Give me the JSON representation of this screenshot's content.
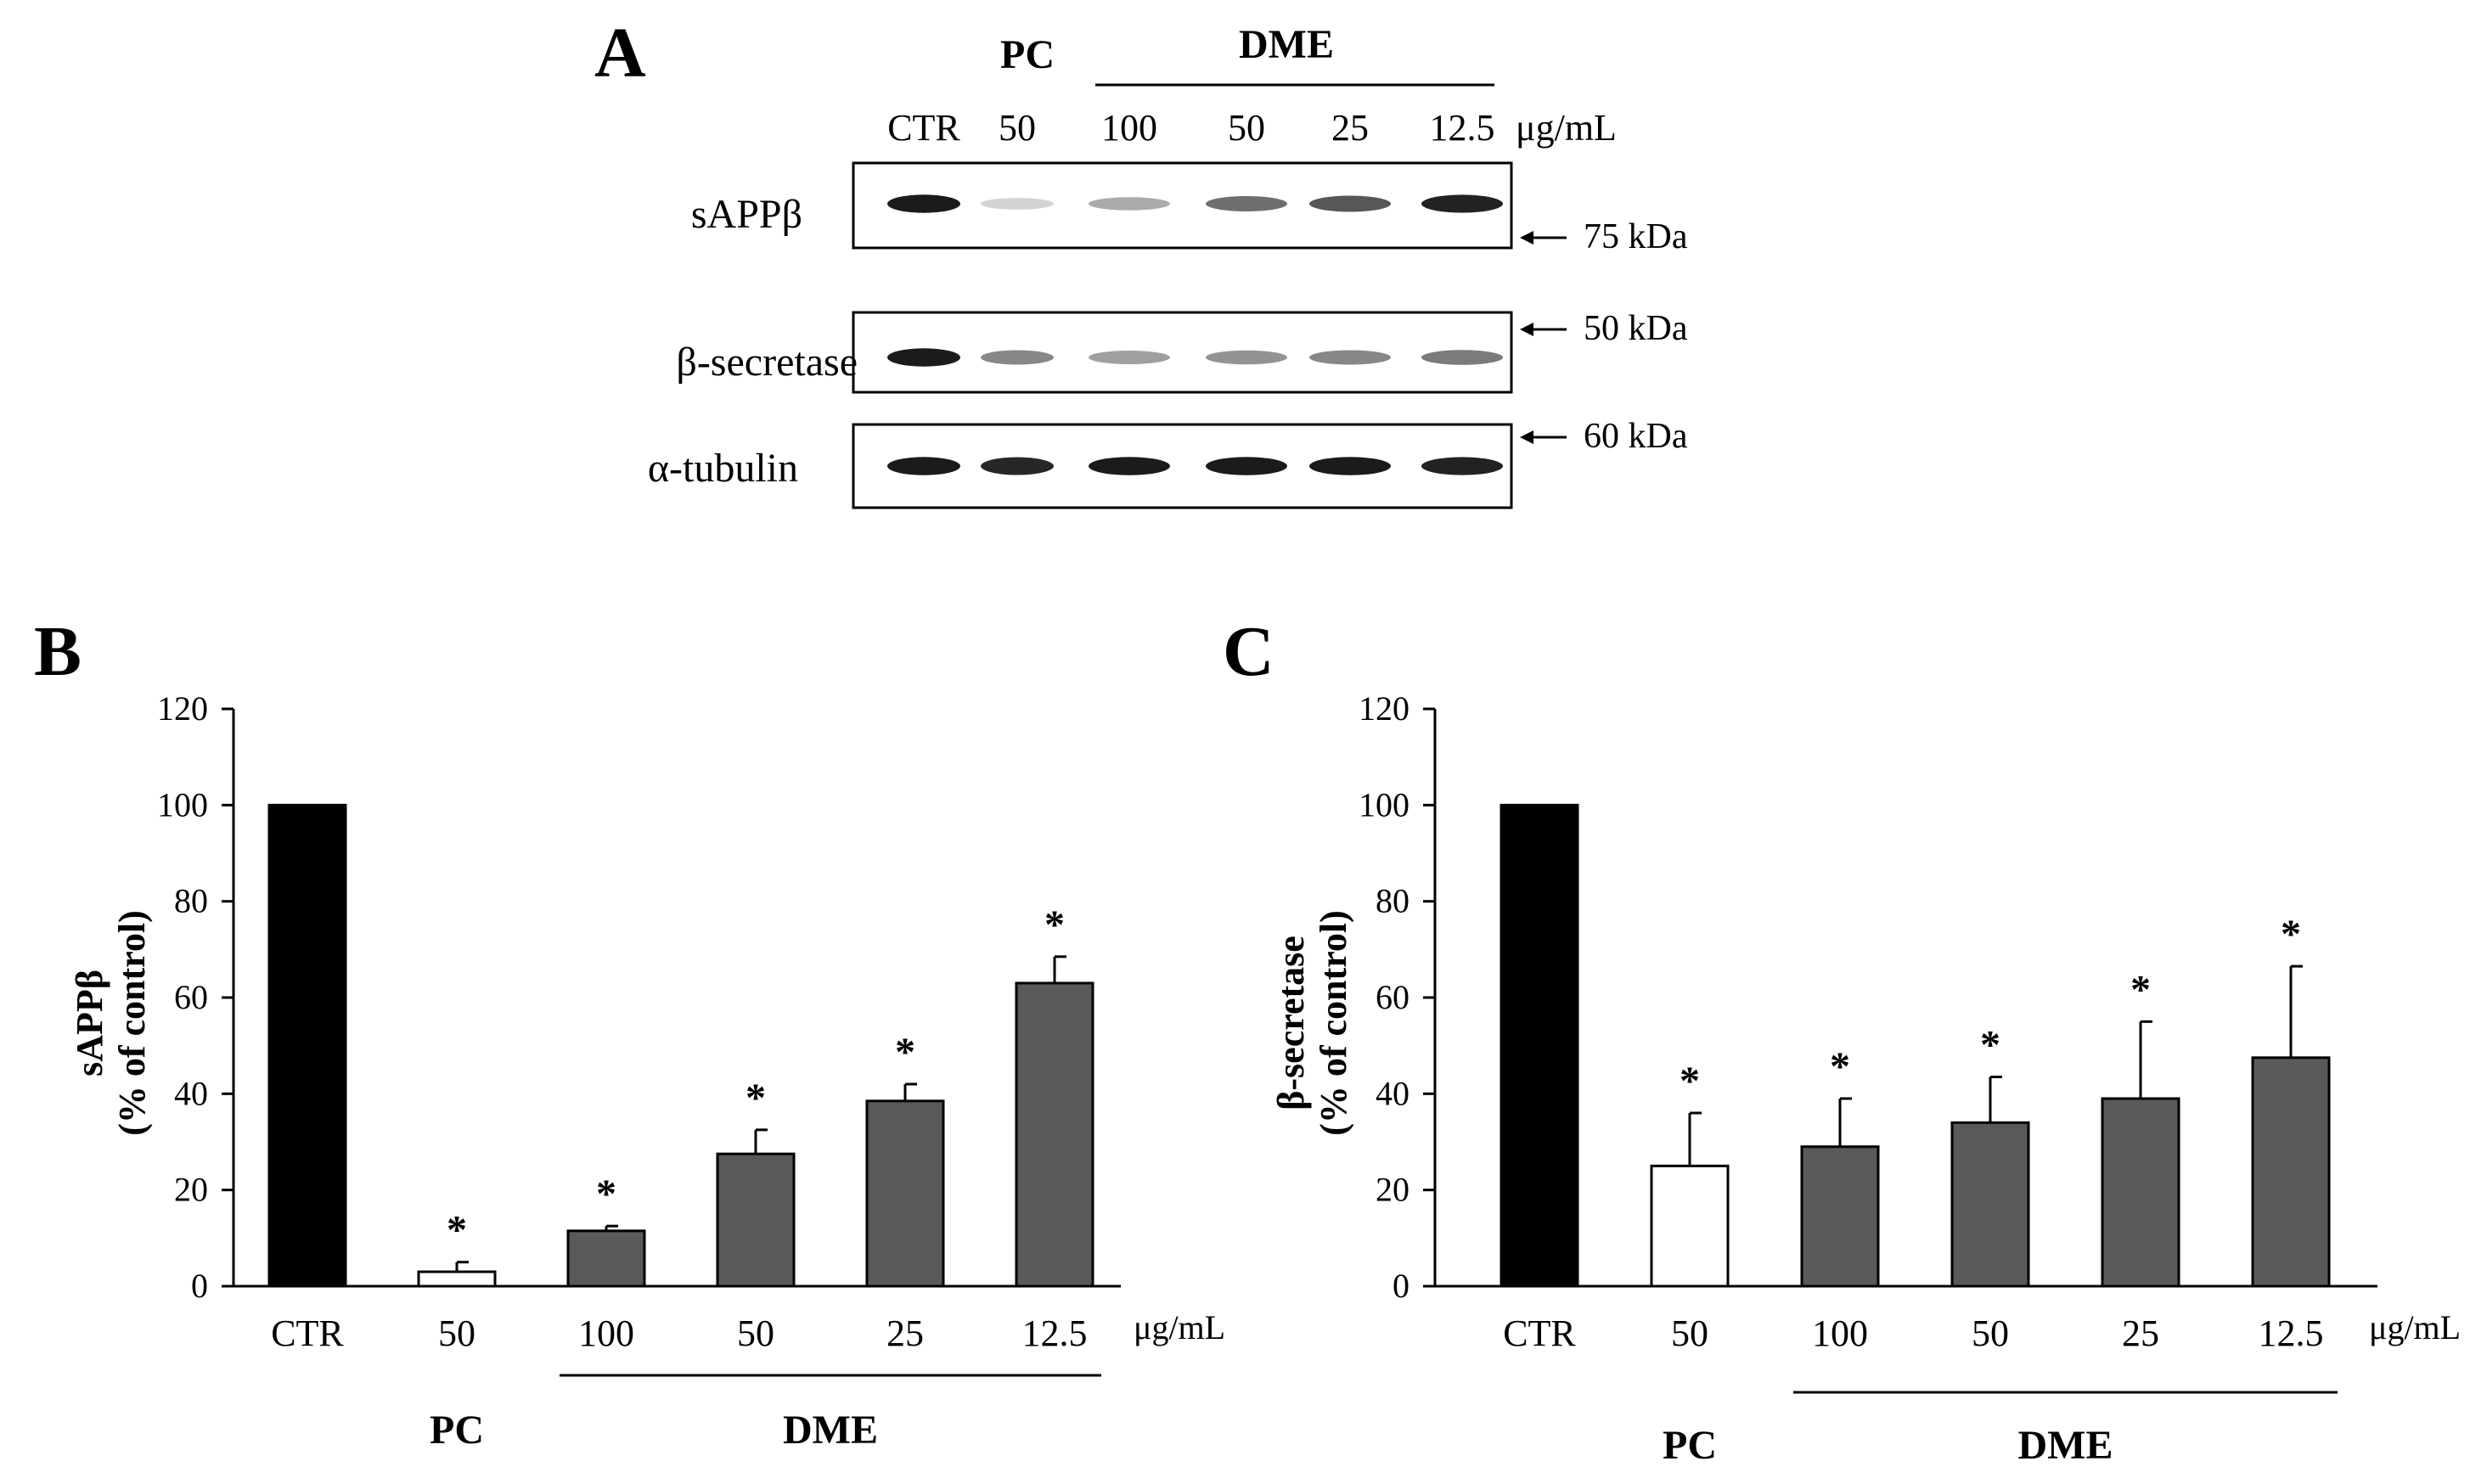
{
  "panel_a": {
    "letter": "A",
    "group_pc": "PC",
    "group_dme": "DME",
    "lanes": [
      "CTR",
      "50",
      "100",
      "50",
      "25",
      "12.5"
    ],
    "unit": "μg/mL",
    "blots": [
      {
        "label": "sAPPβ",
        "marker": "75 kDa",
        "band_intensity": [
          0.95,
          0.18,
          0.35,
          0.6,
          0.7,
          0.92
        ]
      },
      {
        "label": "β-secretase",
        "marker": "50 kDa",
        "band_intensity": [
          0.95,
          0.5,
          0.4,
          0.45,
          0.5,
          0.55
        ]
      },
      {
        "label": "α-tubulin",
        "marker": "60 kDa",
        "band_intensity": [
          0.95,
          0.9,
          0.95,
          0.95,
          0.95,
          0.92
        ]
      }
    ]
  },
  "chart_data": [
    {
      "type": "bar",
      "panel": "B",
      "title": "",
      "xlabel": "",
      "ylabel_line1": "sAPPβ",
      "ylabel_line2": "(% of control)",
      "categories": [
        "CTR",
        "50",
        "100",
        "50",
        "25",
        "12.5"
      ],
      "unit_label": "μg/mL",
      "group_pc": "PC",
      "group_dme": "DME",
      "values": [
        100,
        3,
        11.5,
        27.5,
        38.5,
        63
      ],
      "errors": [
        0,
        2,
        1,
        5,
        3.5,
        5.5
      ],
      "significant": [
        false,
        true,
        true,
        true,
        true,
        true
      ],
      "star": "*",
      "bar_colors": [
        "#000000",
        "#ffffff",
        "#595959",
        "#595959",
        "#595959",
        "#595959"
      ],
      "ylim": [
        0,
        120
      ],
      "yticks": [
        "0",
        "20",
        "40",
        "60",
        "80",
        "100",
        "120"
      ]
    },
    {
      "type": "bar",
      "panel": "C",
      "title": "",
      "xlabel": "",
      "ylabel_line1": "β-secretase",
      "ylabel_line2": "(% of control)",
      "categories": [
        "CTR",
        "50",
        "100",
        "50",
        "25",
        "12.5"
      ],
      "unit_label": "μg/mL",
      "group_pc": "PC",
      "group_dme": "DME",
      "values": [
        100,
        25,
        29,
        34,
        39,
        47.5
      ],
      "errors": [
        0,
        11,
        10,
        9.5,
        16,
        19
      ],
      "significant": [
        false,
        true,
        true,
        true,
        true,
        true
      ],
      "star": "*",
      "bar_colors": [
        "#000000",
        "#ffffff",
        "#595959",
        "#595959",
        "#595959",
        "#595959"
      ],
      "ylim": [
        0,
        120
      ],
      "yticks": [
        "0",
        "20",
        "40",
        "60",
        "80",
        "100",
        "120"
      ]
    }
  ]
}
